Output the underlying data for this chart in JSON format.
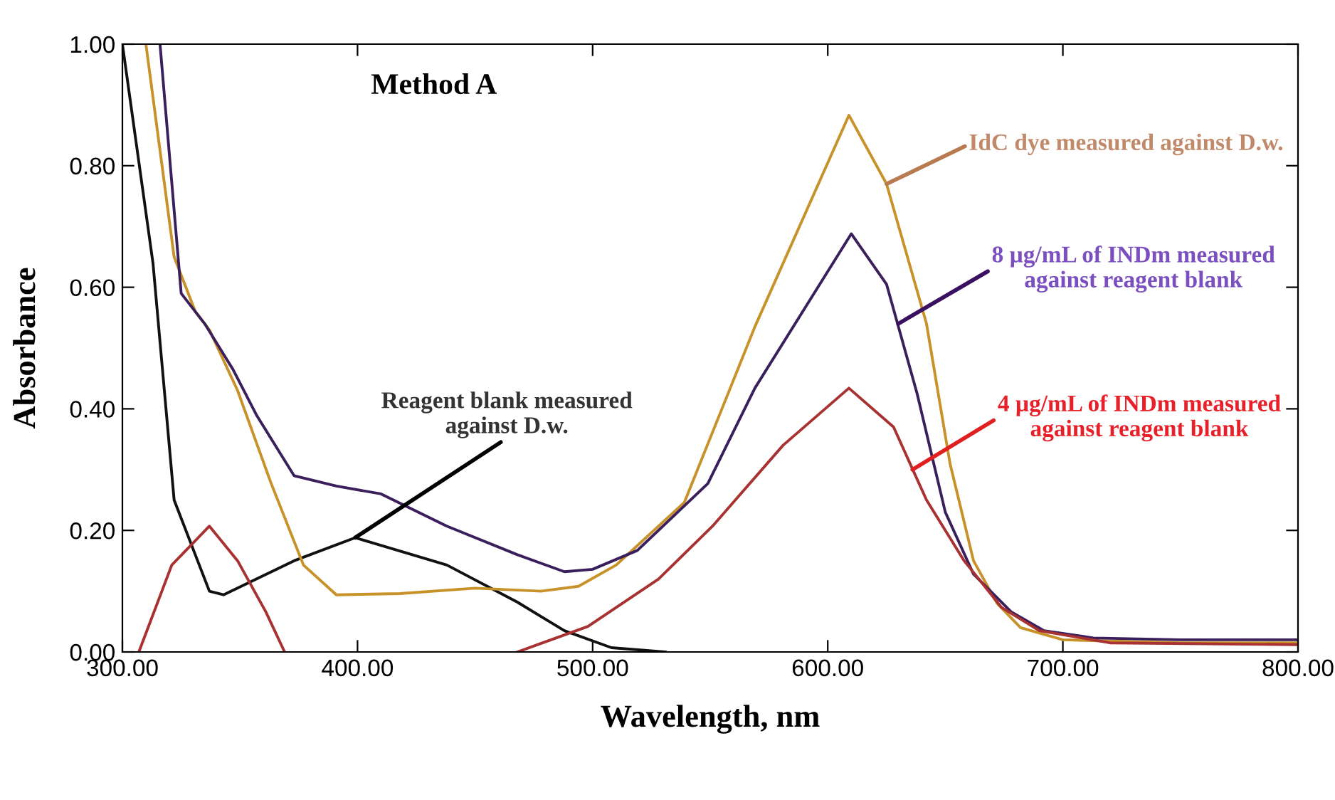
{
  "chart_data": {
    "type": "line",
    "title": "Method A",
    "xlabel": "Wavelength, nm",
    "ylabel": "Absorbance",
    "xlim": [
      300,
      800
    ],
    "ylim": [
      0,
      1
    ],
    "xticks": [
      {
        "value": 300,
        "label": "300.00"
      },
      {
        "value": 400,
        "label": "400.00"
      },
      {
        "value": 500,
        "label": "500.00"
      },
      {
        "value": 600,
        "label": "600.00"
      },
      {
        "value": 700,
        "label": "700.00"
      },
      {
        "value": 800,
        "label": "800.00"
      }
    ],
    "yticks": [
      {
        "value": 0,
        "label": "0.00"
      },
      {
        "value": 0.2,
        "label": "0.20"
      },
      {
        "value": 0.4,
        "label": "0.40"
      },
      {
        "value": 0.6,
        "label": "0.60"
      },
      {
        "value": 0.8,
        "label": "0.80"
      },
      {
        "value": 1,
        "label": "1.00"
      }
    ],
    "grid": false,
    "legend": false,
    "marker": "none",
    "line_style": "solid",
    "series": [
      {
        "color": "#111111",
        "x": [
          300,
          313,
          322,
          337,
          343,
          373,
          399,
          438,
          468,
          488,
          508,
          531
        ],
        "values": [
          1.0,
          0.64,
          0.25,
          0.1,
          0.094,
          0.15,
          0.188,
          0.143,
          0.082,
          0.035,
          0.007,
          0.0
        ]
      },
      {
        "color": "#c8922a",
        "x": [
          310,
          322,
          331,
          337,
          349,
          363,
          377,
          391,
          418,
          450,
          478,
          494,
          510,
          539,
          569,
          609,
          625,
          642,
          652,
          662,
          672,
          682,
          700,
          750,
          800
        ],
        "values": [
          1.0,
          0.65,
          0.56,
          0.53,
          0.43,
          0.28,
          0.143,
          0.094,
          0.096,
          0.105,
          0.1,
          0.108,
          0.143,
          0.246,
          0.535,
          0.883,
          0.77,
          0.54,
          0.31,
          0.15,
          0.08,
          0.04,
          0.02,
          0.015,
          0.015
        ]
      },
      {
        "color": "#3a1f5c",
        "x": [
          316,
          325,
          335,
          347,
          357,
          373,
          391,
          410,
          438,
          468,
          488,
          500,
          519,
          549,
          569,
          610,
          625,
          638,
          650,
          662,
          678,
          692,
          713,
          750,
          800
        ],
        "values": [
          1.0,
          0.59,
          0.54,
          0.465,
          0.39,
          0.29,
          0.273,
          0.26,
          0.207,
          0.16,
          0.132,
          0.136,
          0.167,
          0.277,
          0.434,
          0.688,
          0.605,
          0.425,
          0.23,
          0.128,
          0.066,
          0.035,
          0.023,
          0.02,
          0.02
        ]
      },
      {
        "color": "#a83232",
        "x": [
          307,
          321,
          337,
          349,
          361,
          369,
          420,
          468,
          498,
          528,
          551,
          581,
          609,
          628,
          642,
          658,
          674,
          690,
          720,
          800
        ],
        "values": [
          0.0,
          0.143,
          0.207,
          0.15,
          0.066,
          0.0,
          null,
          0.0,
          0.042,
          0.12,
          0.207,
          0.34,
          0.434,
          0.37,
          0.25,
          0.15,
          0.073,
          0.035,
          0.015,
          0.012
        ]
      }
    ],
    "annotations": [
      {
        "text": "Reagent blank measured\nagainst D.w.",
        "x": 399,
        "y": 0.188
      },
      {
        "text": "IdC dye measured against D.w.",
        "x": 625,
        "y": 0.77
      },
      {
        "text": "8 µg/mL of INDm measured\nagainst reagent blank",
        "x": 630,
        "y": 0.54
      },
      {
        "text": "4 µg/mL of INDm measured\nagainst reagent blank",
        "x": 636,
        "y": 0.3
      }
    ]
  }
}
